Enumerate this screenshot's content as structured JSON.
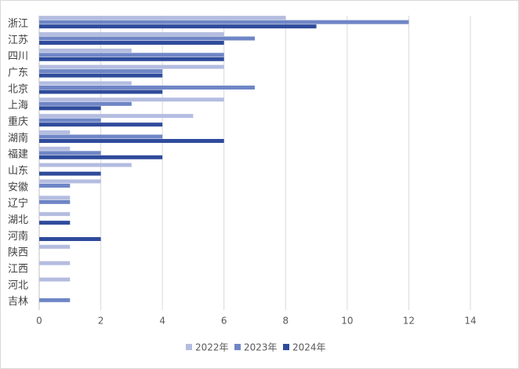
{
  "chart_data": {
    "type": "hbar",
    "categories": [
      "浙江",
      "江苏",
      "四川",
      "广东",
      "北京",
      "上海",
      "重庆",
      "湖南",
      "福建",
      "山东",
      "安徽",
      "辽宁",
      "湖北",
      "河南",
      "陕西",
      "江西",
      "河北",
      "吉林"
    ],
    "series": [
      {
        "name": "2022年",
        "color": "#b4bde0",
        "values": [
          8,
          6,
          3,
          6,
          3,
          6,
          5,
          1,
          1,
          3,
          2,
          1,
          1,
          0,
          1,
          1,
          1,
          0
        ]
      },
      {
        "name": "2023年",
        "color": "#6f86c6",
        "values": [
          12,
          7,
          6,
          4,
          7,
          3,
          2,
          4,
          2,
          0,
          1,
          1,
          0,
          0,
          0,
          0,
          0,
          1
        ]
      },
      {
        "name": "2024年",
        "color": "#2f4b9b",
        "values": [
          9,
          6,
          6,
          4,
          4,
          2,
          4,
          6,
          4,
          2,
          0,
          0,
          1,
          2,
          0,
          0,
          0,
          0
        ]
      }
    ],
    "xlim": [
      0,
      14
    ],
    "xticks": [
      0,
      2,
      4,
      6,
      8,
      10,
      12,
      14
    ],
    "grid": true,
    "legend": "bottom"
  }
}
